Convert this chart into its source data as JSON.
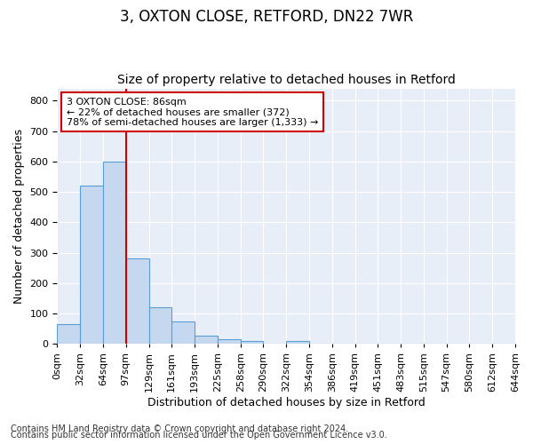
{
  "title": "3, OXTON CLOSE, RETFORD, DN22 7WR",
  "subtitle": "Size of property relative to detached houses in Retford",
  "xlabel": "Distribution of detached houses by size in Retford",
  "ylabel": "Number of detached properties",
  "bar_values": [
    65,
    520,
    600,
    280,
    120,
    75,
    28,
    15,
    10,
    0,
    10,
    0,
    0,
    0,
    0,
    0,
    0,
    0,
    0,
    0
  ],
  "bin_labels": [
    "0sqm",
    "32sqm",
    "64sqm",
    "97sqm",
    "129sqm",
    "161sqm",
    "193sqm",
    "225sqm",
    "258sqm",
    "290sqm",
    "322sqm",
    "354sqm",
    "386sqm",
    "419sqm",
    "451sqm",
    "483sqm",
    "515sqm",
    "547sqm",
    "580sqm",
    "612sqm",
    "644sqm"
  ],
  "bar_color": "#c5d8f0",
  "bar_edge_color": "#5a9fd4",
  "vline_color": "#cc0000",
  "vline_position": 3.0,
  "ylim": [
    0,
    840
  ],
  "yticks": [
    0,
    100,
    200,
    300,
    400,
    500,
    600,
    700,
    800
  ],
  "annotation_text": "3 OXTON CLOSE: 86sqm\n← 22% of detached houses are smaller (372)\n78% of semi-detached houses are larger (1,333) →",
  "background_color": "#e8eef8",
  "footer_line1": "Contains HM Land Registry data © Crown copyright and database right 2024.",
  "footer_line2": "Contains public sector information licensed under the Open Government Licence v3.0.",
  "title_fontsize": 12,
  "subtitle_fontsize": 10,
  "xlabel_fontsize": 9,
  "ylabel_fontsize": 9,
  "tick_fontsize": 8,
  "footer_fontsize": 7
}
